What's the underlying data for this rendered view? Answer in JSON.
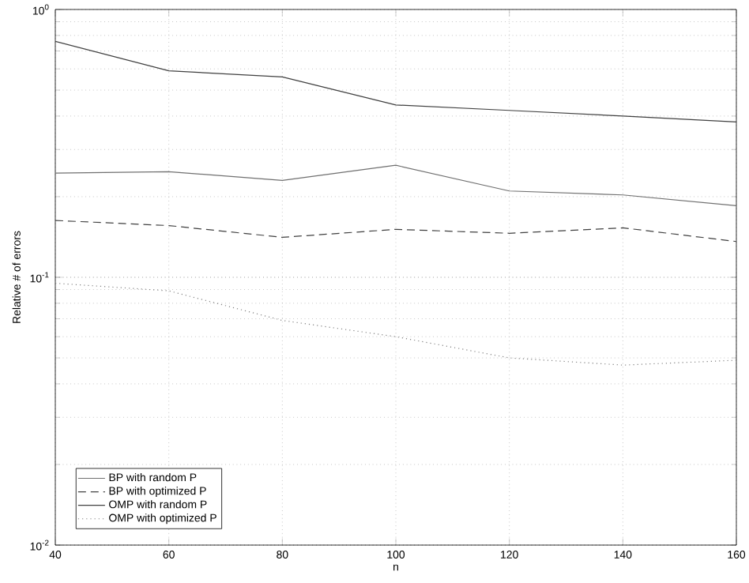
{
  "chart_data": {
    "type": "line",
    "xlabel": "n",
    "ylabel": "Relative # of errors",
    "log": "y",
    "grid": true,
    "legend": "bottom left",
    "x": [
      40,
      60,
      80,
      100,
      120,
      140,
      160
    ],
    "xlim": [
      40,
      160
    ],
    "xticks": [
      40,
      60,
      80,
      100,
      120,
      140,
      160
    ],
    "ylim": [
      0.01,
      1
    ],
    "yticks": [
      {
        "value": 0.01,
        "label": "10$^{-2}$"
      },
      {
        "value": 0.1,
        "label": "10$^{-1}$"
      },
      {
        "value": 1,
        "label": "10$^{0}$"
      }
    ],
    "series": [
      {
        "name": "BP with random P",
        "color": "#707070",
        "line_style": "solid",
        "values": [
          0.245,
          0.248,
          0.23,
          0.262,
          0.21,
          0.203,
          0.185
        ]
      },
      {
        "name": "BP with optimized P",
        "color": "#404040",
        "line_style": "dashed",
        "values": [
          0.163,
          0.156,
          0.141,
          0.151,
          0.146,
          0.153,
          0.136
        ]
      },
      {
        "name": "OMP with random P",
        "color": "#404040",
        "line_style": "solid",
        "values": [
          0.76,
          0.59,
          0.56,
          0.44,
          0.42,
          0.4,
          0.38
        ]
      },
      {
        "name": "OMP with optimized P",
        "color": "#808080",
        "line_style": "dotted",
        "values": [
          0.095,
          0.089,
          0.069,
          0.06,
          0.05,
          0.047,
          0.049
        ]
      }
    ]
  }
}
